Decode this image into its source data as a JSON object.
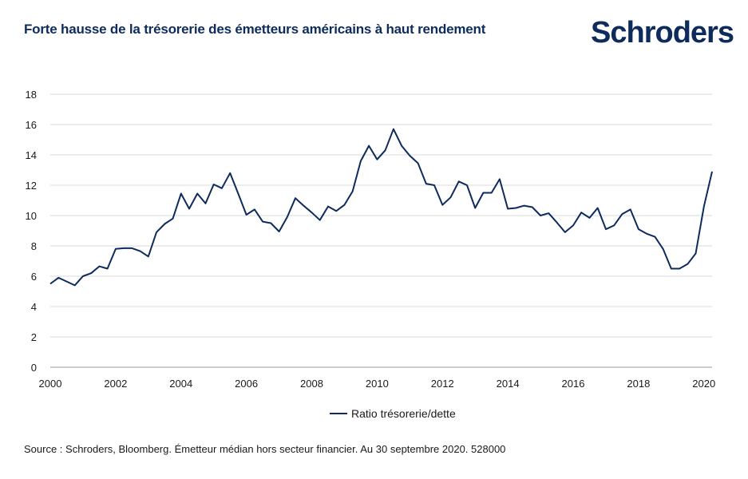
{
  "title": "Forte hausse de la trésorerie des émetteurs américains à haut rendement",
  "logo": "Schroders",
  "source": "Source : Schroders, Bloomberg. Émetteur médian hors secteur financier. Au 30 septembre 2020. 528000",
  "colors": {
    "line": "#0d2b5c",
    "grid": "#d9d9d9",
    "title": "#0d2b5c"
  },
  "chart_data": {
    "type": "line",
    "title": "Forte hausse de la trésorerie des émetteurs américains à haut rendement",
    "xlabel": "",
    "ylabel": "",
    "xlim": [
      2000,
      2020.25
    ],
    "ylim": [
      0,
      18
    ],
    "grid": true,
    "legend_position": "bottom",
    "x_ticks": [
      "2000",
      "2002",
      "2004",
      "2006",
      "2008",
      "2010",
      "2012",
      "2014",
      "2016",
      "2018",
      "2020"
    ],
    "y_ticks": [
      "0",
      "2",
      "4",
      "6",
      "8",
      "10",
      "12",
      "14",
      "16",
      "18"
    ],
    "series": [
      {
        "name": "Ratio trésorerie/dette",
        "x": [
          2000.0,
          2000.25,
          2000.5,
          2000.75,
          2001.0,
          2001.25,
          2001.5,
          2001.75,
          2002.0,
          2002.25,
          2002.5,
          2002.75,
          2003.0,
          2003.25,
          2003.5,
          2003.75,
          2004.0,
          2004.25,
          2004.5,
          2004.75,
          2005.0,
          2005.25,
          2005.5,
          2005.75,
          2006.0,
          2006.25,
          2006.5,
          2006.75,
          2007.0,
          2007.25,
          2007.5,
          2007.75,
          2008.0,
          2008.25,
          2008.5,
          2008.75,
          2009.0,
          2009.25,
          2009.5,
          2009.75,
          2010.0,
          2010.25,
          2010.5,
          2010.75,
          2011.0,
          2011.25,
          2011.5,
          2011.75,
          2012.0,
          2012.25,
          2012.5,
          2012.75,
          2013.0,
          2013.25,
          2013.5,
          2013.75,
          2014.0,
          2014.25,
          2014.5,
          2014.75,
          2015.0,
          2015.25,
          2015.5,
          2015.75,
          2016.0,
          2016.25,
          2016.5,
          2016.75,
          2017.0,
          2017.25,
          2017.5,
          2017.75,
          2018.0,
          2018.25,
          2018.5,
          2018.75,
          2019.0,
          2019.25,
          2019.5,
          2019.75,
          2020.0,
          2020.25
        ],
        "values": [
          5.5,
          5.9,
          5.65,
          5.4,
          6.0,
          6.2,
          6.65,
          6.5,
          7.8,
          7.85,
          7.85,
          7.65,
          7.3,
          8.9,
          9.45,
          9.8,
          11.45,
          10.45,
          11.45,
          10.8,
          12.05,
          11.8,
          12.8,
          11.45,
          10.05,
          10.4,
          9.6,
          9.5,
          8.95,
          9.9,
          11.15,
          10.65,
          10.2,
          9.7,
          10.6,
          10.3,
          10.7,
          11.6,
          13.6,
          14.6,
          13.7,
          14.3,
          15.7,
          14.6,
          13.95,
          13.45,
          12.1,
          12.0,
          10.7,
          11.2,
          12.25,
          12.0,
          10.5,
          11.5,
          11.5,
          12.4,
          10.45,
          10.5,
          10.65,
          10.55,
          10.0,
          10.15,
          9.55,
          8.9,
          9.35,
          10.2,
          9.85,
          10.5,
          9.1,
          9.35,
          10.1,
          10.4,
          9.1,
          8.8,
          8.6,
          7.8,
          6.5,
          6.5,
          6.8,
          7.5,
          10.6,
          12.9
        ]
      }
    ]
  }
}
